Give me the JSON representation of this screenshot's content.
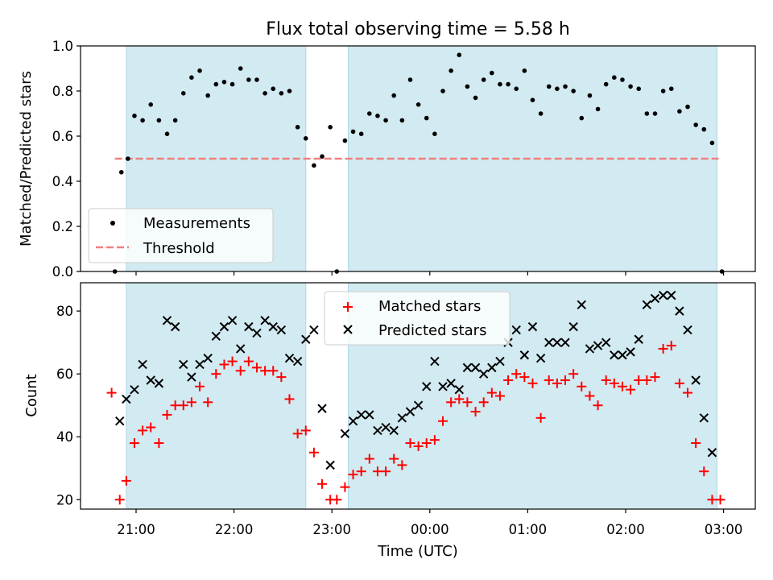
{
  "chart_data": [
    {
      "type": "scatter",
      "title": "Flux total observing time = 5.58 h",
      "ylabel": "Matched/Predicted stars",
      "xlabel": "",
      "x_ticks": [
        "21:00",
        "22:00",
        "23:00",
        "00:00",
        "01:00",
        "02:00",
        "03:00"
      ],
      "ylim": [
        0,
        1.0
      ],
      "y_ticks": [
        "0.0",
        "0.2",
        "0.4",
        "0.6",
        "0.8",
        "1.0"
      ],
      "threshold": {
        "name": "Threshold",
        "value": 0.5,
        "x_range": [
          "20:47",
          "02:57"
        ],
        "color": "#f08080"
      },
      "shaded_intervals": [
        [
          "20:54",
          "22:44"
        ],
        [
          "23:10",
          "02:56"
        ]
      ],
      "shade_color": "#add8e6",
      "legend": {
        "placement": "lower-left",
        "entries": [
          "Measurements",
          "Threshold"
        ]
      },
      "series": [
        {
          "name": "Measurements",
          "marker": "dot",
          "color": "#000000",
          "points": [
            [
              "20:47",
              0.0
            ],
            [
              "20:51",
              0.44
            ],
            [
              "20:55",
              0.5
            ],
            [
              "20:59",
              0.69
            ],
            [
              "21:04",
              0.67
            ],
            [
              "21:09",
              0.74
            ],
            [
              "21:14",
              0.67
            ],
            [
              "21:19",
              0.61
            ],
            [
              "21:24",
              0.67
            ],
            [
              "21:29",
              0.79
            ],
            [
              "21:34",
              0.86
            ],
            [
              "21:39",
              0.89
            ],
            [
              "21:44",
              0.78
            ],
            [
              "21:49",
              0.83
            ],
            [
              "21:54",
              0.84
            ],
            [
              "21:59",
              0.83
            ],
            [
              "22:04",
              0.9
            ],
            [
              "22:09",
              0.85
            ],
            [
              "22:14",
              0.85
            ],
            [
              "22:19",
              0.79
            ],
            [
              "22:24",
              0.81
            ],
            [
              "22:29",
              0.79
            ],
            [
              "22:34",
              0.8
            ],
            [
              "22:39",
              0.64
            ],
            [
              "22:44",
              0.59
            ],
            [
              "22:49",
              0.47
            ],
            [
              "22:54",
              0.51
            ],
            [
              "22:59",
              0.64
            ],
            [
              "23:03",
              0.0
            ],
            [
              "23:08",
              0.58
            ],
            [
              "23:13",
              0.62
            ],
            [
              "23:18",
              0.61
            ],
            [
              "23:23",
              0.7
            ],
            [
              "23:28",
              0.69
            ],
            [
              "23:33",
              0.67
            ],
            [
              "23:38",
              0.78
            ],
            [
              "23:43",
              0.67
            ],
            [
              "23:48",
              0.85
            ],
            [
              "23:53",
              0.74
            ],
            [
              "23:58",
              0.68
            ],
            [
              "00:03",
              0.61
            ],
            [
              "00:08",
              0.8
            ],
            [
              "00:13",
              0.89
            ],
            [
              "00:18",
              0.96
            ],
            [
              "00:23",
              0.82
            ],
            [
              "00:28",
              0.77
            ],
            [
              "00:33",
              0.85
            ],
            [
              "00:38",
              0.88
            ],
            [
              "00:43",
              0.83
            ],
            [
              "00:48",
              0.83
            ],
            [
              "00:53",
              0.81
            ],
            [
              "00:58",
              0.89
            ],
            [
              "01:03",
              0.76
            ],
            [
              "01:08",
              0.7
            ],
            [
              "01:13",
              0.82
            ],
            [
              "01:18",
              0.81
            ],
            [
              "01:23",
              0.82
            ],
            [
              "01:28",
              0.8
            ],
            [
              "01:33",
              0.68
            ],
            [
              "01:38",
              0.78
            ],
            [
              "01:43",
              0.72
            ],
            [
              "01:48",
              0.83
            ],
            [
              "01:53",
              0.86
            ],
            [
              "01:58",
              0.85
            ],
            [
              "02:03",
              0.82
            ],
            [
              "02:08",
              0.81
            ],
            [
              "02:13",
              0.7
            ],
            [
              "02:18",
              0.7
            ],
            [
              "02:23",
              0.8
            ],
            [
              "02:28",
              0.81
            ],
            [
              "02:33",
              0.71
            ],
            [
              "02:38",
              0.73
            ],
            [
              "02:43",
              0.65
            ],
            [
              "02:48",
              0.63
            ],
            [
              "02:53",
              0.57
            ],
            [
              "02:59",
              0.0
            ]
          ]
        }
      ]
    },
    {
      "type": "scatter",
      "title": "",
      "ylabel": "Count",
      "xlabel": "Time (UTC)",
      "x_ticks": [
        "21:00",
        "22:00",
        "23:00",
        "00:00",
        "01:00",
        "02:00",
        "03:00"
      ],
      "ylim": [
        17,
        89
      ],
      "y_ticks": [
        "20",
        "40",
        "60",
        "80"
      ],
      "shaded_intervals": [
        [
          "20:54",
          "22:44"
        ],
        [
          "23:10",
          "02:56"
        ]
      ],
      "shade_color": "#add8e6",
      "legend": {
        "placement": "top-center",
        "entries": [
          "Matched stars",
          "Predicted stars"
        ]
      },
      "series": [
        {
          "name": "Matched stars",
          "marker": "plus",
          "color": "#ff0000",
          "points": [
            [
              "20:45",
              54
            ],
            [
              "20:50",
              20
            ],
            [
              "20:54",
              26
            ],
            [
              "20:59",
              38
            ],
            [
              "21:04",
              42
            ],
            [
              "21:09",
              43
            ],
            [
              "21:14",
              38
            ],
            [
              "21:19",
              47
            ],
            [
              "21:24",
              50
            ],
            [
              "21:29",
              50
            ],
            [
              "21:34",
              51
            ],
            [
              "21:39",
              56
            ],
            [
              "21:44",
              51
            ],
            [
              "21:49",
              60
            ],
            [
              "21:54",
              63
            ],
            [
              "21:59",
              64
            ],
            [
              "22:04",
              61
            ],
            [
              "22:09",
              64
            ],
            [
              "22:14",
              62
            ],
            [
              "22:19",
              61
            ],
            [
              "22:24",
              61
            ],
            [
              "22:29",
              59
            ],
            [
              "22:34",
              52
            ],
            [
              "22:39",
              41
            ],
            [
              "22:44",
              42
            ],
            [
              "22:49",
              35
            ],
            [
              "22:54",
              25
            ],
            [
              "22:59",
              20
            ],
            [
              "23:03",
              20
            ],
            [
              "23:08",
              24
            ],
            [
              "23:13",
              28
            ],
            [
              "23:18",
              29
            ],
            [
              "23:23",
              33
            ],
            [
              "23:28",
              29
            ],
            [
              "23:33",
              29
            ],
            [
              "23:38",
              33
            ],
            [
              "23:43",
              31
            ],
            [
              "23:48",
              38
            ],
            [
              "23:53",
              37
            ],
            [
              "23:58",
              38
            ],
            [
              "00:03",
              39
            ],
            [
              "00:08",
              45
            ],
            [
              "00:13",
              51
            ],
            [
              "00:18",
              52
            ],
            [
              "00:23",
              51
            ],
            [
              "00:28",
              48
            ],
            [
              "00:33",
              51
            ],
            [
              "00:38",
              54
            ],
            [
              "00:43",
              53
            ],
            [
              "00:48",
              58
            ],
            [
              "00:53",
              60
            ],
            [
              "00:58",
              59
            ],
            [
              "01:03",
              57
            ],
            [
              "01:08",
              46
            ],
            [
              "01:13",
              58
            ],
            [
              "01:18",
              57
            ],
            [
              "01:23",
              58
            ],
            [
              "01:28",
              60
            ],
            [
              "01:33",
              56
            ],
            [
              "01:38",
              53
            ],
            [
              "01:43",
              50
            ],
            [
              "01:48",
              58
            ],
            [
              "01:53",
              57
            ],
            [
              "01:58",
              56
            ],
            [
              "02:03",
              55
            ],
            [
              "02:08",
              58
            ],
            [
              "02:13",
              58
            ],
            [
              "02:18",
              59
            ],
            [
              "02:23",
              68
            ],
            [
              "02:28",
              69
            ],
            [
              "02:33",
              57
            ],
            [
              "02:38",
              54
            ],
            [
              "02:43",
              38
            ],
            [
              "02:48",
              29
            ],
            [
              "02:53",
              20
            ],
            [
              "02:58",
              20
            ]
          ]
        },
        {
          "name": "Predicted stars",
          "marker": "x",
          "color": "#000000",
          "points": [
            [
              "20:50",
              45
            ],
            [
              "20:54",
              52
            ],
            [
              "20:59",
              55
            ],
            [
              "21:04",
              63
            ],
            [
              "21:09",
              58
            ],
            [
              "21:14",
              57
            ],
            [
              "21:19",
              77
            ],
            [
              "21:24",
              75
            ],
            [
              "21:29",
              63
            ],
            [
              "21:34",
              59
            ],
            [
              "21:39",
              63
            ],
            [
              "21:44",
              65
            ],
            [
              "21:49",
              72
            ],
            [
              "21:54",
              75
            ],
            [
              "21:59",
              77
            ],
            [
              "22:04",
              68
            ],
            [
              "22:09",
              75
            ],
            [
              "22:14",
              73
            ],
            [
              "22:19",
              77
            ],
            [
              "22:24",
              75
            ],
            [
              "22:29",
              74
            ],
            [
              "22:34",
              65
            ],
            [
              "22:39",
              64
            ],
            [
              "22:44",
              71
            ],
            [
              "22:49",
              74
            ],
            [
              "22:54",
              49
            ],
            [
              "22:59",
              31
            ],
            [
              "23:08",
              41
            ],
            [
              "23:13",
              45
            ],
            [
              "23:18",
              47
            ],
            [
              "23:23",
              47
            ],
            [
              "23:28",
              42
            ],
            [
              "23:33",
              43
            ],
            [
              "23:38",
              42
            ],
            [
              "23:43",
              46
            ],
            [
              "23:48",
              48
            ],
            [
              "23:53",
              50
            ],
            [
              "23:58",
              56
            ],
            [
              "00:03",
              64
            ],
            [
              "00:08",
              56
            ],
            [
              "00:13",
              57
            ],
            [
              "00:18",
              55
            ],
            [
              "00:23",
              62
            ],
            [
              "00:28",
              62
            ],
            [
              "00:33",
              60
            ],
            [
              "00:38",
              62
            ],
            [
              "00:43",
              64
            ],
            [
              "00:48",
              70
            ],
            [
              "00:53",
              74
            ],
            [
              "00:58",
              66
            ],
            [
              "01:03",
              75
            ],
            [
              "01:08",
              65
            ],
            [
              "01:13",
              70
            ],
            [
              "01:18",
              70
            ],
            [
              "01:23",
              70
            ],
            [
              "01:28",
              75
            ],
            [
              "01:33",
              82
            ],
            [
              "01:38",
              68
            ],
            [
              "01:43",
              69
            ],
            [
              "01:48",
              70
            ],
            [
              "01:53",
              66
            ],
            [
              "01:58",
              66
            ],
            [
              "02:03",
              67
            ],
            [
              "02:08",
              71
            ],
            [
              "02:13",
              82
            ],
            [
              "02:18",
              84
            ],
            [
              "02:23",
              85
            ],
            [
              "02:28",
              85
            ],
            [
              "02:33",
              80
            ],
            [
              "02:38",
              74
            ],
            [
              "02:43",
              58
            ],
            [
              "02:48",
              46
            ],
            [
              "02:53",
              35
            ]
          ]
        }
      ]
    }
  ]
}
